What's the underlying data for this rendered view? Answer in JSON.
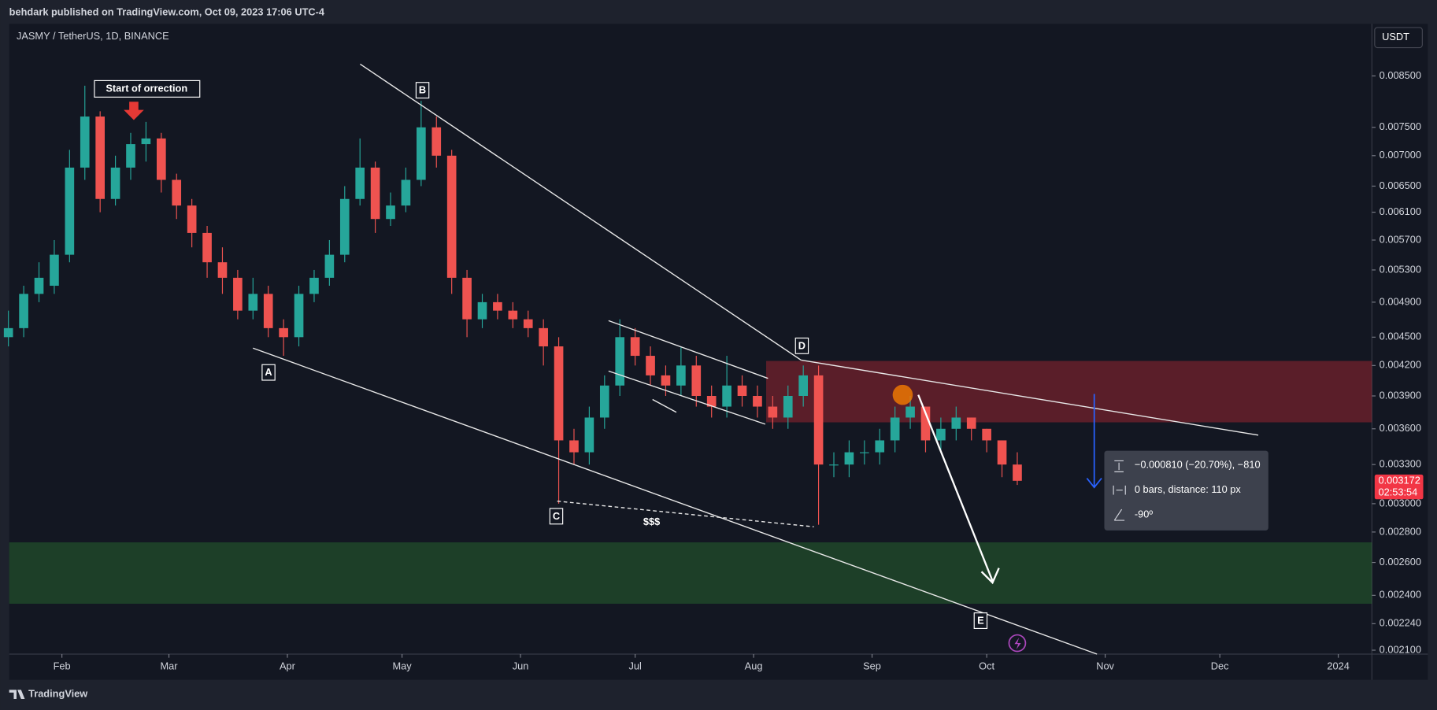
{
  "page": {
    "publisher": "behdark published on TradingView.com, Oct 09, 2023 17:06 UTC-4",
    "footer": "TradingView",
    "currency": "USDT",
    "countdown": "02:53:54",
    "annotations": {
      "start_label": "Start of orrection",
      "A": "A",
      "B": "B",
      "C": "C",
      "D": "D",
      "E": "E",
      "liquidity": "$$$"
    },
    "measure": {
      "price_range": "−0.000810 (−20.70%), −810",
      "bars": "0 bars, distance: 110 px",
      "angle": "-90º"
    }
  },
  "chart_data": {
    "type": "candlestick",
    "title": "JASMY / TetherUS, 1D, BINANCE",
    "log_scale": true,
    "grid": false,
    "up_color": "#26a69a",
    "down_color": "#ef5350",
    "xlim": [
      18.2,
      374.8
    ],
    "xticks": [
      {
        "value": 32,
        "label": "Feb"
      },
      {
        "value": 60,
        "label": "Mar"
      },
      {
        "value": 91,
        "label": "Apr"
      },
      {
        "value": 121,
        "label": "May"
      },
      {
        "value": 152,
        "label": "Jun"
      },
      {
        "value": 182,
        "label": "Jul"
      },
      {
        "value": 213,
        "label": "Aug"
      },
      {
        "value": 244,
        "label": "Sep"
      },
      {
        "value": 274,
        "label": "Oct"
      },
      {
        "value": 305,
        "label": "Nov"
      },
      {
        "value": 335,
        "label": "Dec"
      },
      {
        "value": 366,
        "label": "2024"
      }
    ],
    "ylim": [
      0.00208,
      0.00965
    ],
    "yticks": [
      {
        "value": 0.0085,
        "label": "0.008500"
      },
      {
        "value": 0.0075,
        "label": "0.007500"
      },
      {
        "value": 0.007,
        "label": "0.007000"
      },
      {
        "value": 0.0065,
        "label": "0.006500"
      },
      {
        "value": 0.0061,
        "label": "0.006100"
      },
      {
        "value": 0.0057,
        "label": "0.005700"
      },
      {
        "value": 0.0053,
        "label": "0.005300"
      },
      {
        "value": 0.0049,
        "label": "0.004900"
      },
      {
        "value": 0.0045,
        "label": "0.004500"
      },
      {
        "value": 0.0042,
        "label": "0.004200"
      },
      {
        "value": 0.0039,
        "label": "0.003900"
      },
      {
        "value": 0.0036,
        "label": "0.003600"
      },
      {
        "value": 0.0033,
        "label": "0.003300"
      },
      {
        "value": 0.003,
        "label": "0.003000"
      },
      {
        "value": 0.0028,
        "label": "0.002800"
      },
      {
        "value": 0.0026,
        "label": "0.002600"
      },
      {
        "value": 0.0024,
        "label": "0.002400"
      },
      {
        "value": 0.00224,
        "label": "0.002240"
      },
      {
        "value": 0.0021,
        "label": "0.002100"
      }
    ],
    "x": [
      18,
      22,
      26,
      30,
      34,
      38,
      42,
      46,
      50,
      54,
      58,
      62,
      66,
      70,
      74,
      78,
      82,
      86,
      90,
      94,
      98,
      102,
      106,
      110,
      114,
      118,
      122,
      126,
      130,
      134,
      138,
      142,
      146,
      150,
      154,
      158,
      162,
      166,
      170,
      174,
      178,
      182,
      186,
      190,
      194,
      198,
      202,
      206,
      210,
      214,
      218,
      222,
      226,
      230,
      234,
      238,
      242,
      246,
      250,
      254,
      258,
      262,
      266,
      270,
      274,
      278,
      282
    ],
    "candles": [
      [
        0.0045,
        0.0048,
        0.0044,
        0.0046
      ],
      [
        0.0046,
        0.0051,
        0.0045,
        0.005
      ],
      [
        0.005,
        0.0054,
        0.0049,
        0.0052
      ],
      [
        0.0051,
        0.0057,
        0.005,
        0.0055
      ],
      [
        0.0055,
        0.0071,
        0.0054,
        0.0068
      ],
      [
        0.0068,
        0.0083,
        0.0066,
        0.0077
      ],
      [
        0.0077,
        0.0078,
        0.0061,
        0.0063
      ],
      [
        0.0063,
        0.007,
        0.0062,
        0.0068
      ],
      [
        0.0068,
        0.0074,
        0.0066,
        0.0072
      ],
      [
        0.0072,
        0.0076,
        0.0069,
        0.0073
      ],
      [
        0.0073,
        0.0074,
        0.0064,
        0.0066
      ],
      [
        0.0066,
        0.0067,
        0.006,
        0.0062
      ],
      [
        0.0062,
        0.0063,
        0.0056,
        0.0058
      ],
      [
        0.0058,
        0.0059,
        0.0052,
        0.0054
      ],
      [
        0.0054,
        0.0056,
        0.005,
        0.0052
      ],
      [
        0.0052,
        0.0053,
        0.0047,
        0.0048
      ],
      [
        0.0048,
        0.0052,
        0.0047,
        0.005
      ],
      [
        0.005,
        0.0051,
        0.0045,
        0.0046
      ],
      [
        0.0046,
        0.0047,
        0.0043,
        0.0045
      ],
      [
        0.0045,
        0.0051,
        0.0044,
        0.005
      ],
      [
        0.005,
        0.0053,
        0.0049,
        0.0052
      ],
      [
        0.0052,
        0.0057,
        0.0051,
        0.0055
      ],
      [
        0.0055,
        0.0065,
        0.0054,
        0.0063
      ],
      [
        0.0063,
        0.0073,
        0.0062,
        0.0068
      ],
      [
        0.0068,
        0.0069,
        0.0058,
        0.006
      ],
      [
        0.006,
        0.0064,
        0.0059,
        0.0062
      ],
      [
        0.0062,
        0.0068,
        0.0061,
        0.0066
      ],
      [
        0.0066,
        0.008,
        0.0065,
        0.0075
      ],
      [
        0.0075,
        0.0077,
        0.0068,
        0.007
      ],
      [
        0.007,
        0.0071,
        0.005,
        0.0052
      ],
      [
        0.0052,
        0.0053,
        0.0045,
        0.0047
      ],
      [
        0.0047,
        0.005,
        0.0046,
        0.0049
      ],
      [
        0.0049,
        0.005,
        0.0047,
        0.0048
      ],
      [
        0.0048,
        0.0049,
        0.0046,
        0.0047
      ],
      [
        0.0047,
        0.0048,
        0.0045,
        0.0046
      ],
      [
        0.0046,
        0.0047,
        0.0042,
        0.0044
      ],
      [
        0.0044,
        0.0045,
        0.003,
        0.0035
      ],
      [
        0.0035,
        0.0036,
        0.0033,
        0.0034
      ],
      [
        0.0034,
        0.0038,
        0.0033,
        0.0037
      ],
      [
        0.0037,
        0.0041,
        0.0036,
        0.004
      ],
      [
        0.004,
        0.0047,
        0.0039,
        0.0045
      ],
      [
        0.0045,
        0.0046,
        0.0042,
        0.0043
      ],
      [
        0.0043,
        0.0044,
        0.004,
        0.0041
      ],
      [
        0.0041,
        0.0042,
        0.0039,
        0.004
      ],
      [
        0.004,
        0.0044,
        0.0039,
        0.0042
      ],
      [
        0.0042,
        0.0043,
        0.0038,
        0.0039
      ],
      [
        0.0039,
        0.004,
        0.0037,
        0.0038
      ],
      [
        0.0038,
        0.0043,
        0.0037,
        0.004
      ],
      [
        0.004,
        0.0041,
        0.0038,
        0.0039
      ],
      [
        0.0039,
        0.004,
        0.0037,
        0.0038
      ],
      [
        0.0038,
        0.0039,
        0.0036,
        0.0037
      ],
      [
        0.0037,
        0.004,
        0.0036,
        0.0039
      ],
      [
        0.0039,
        0.0042,
        0.0038,
        0.0041
      ],
      [
        0.0041,
        0.0042,
        0.00285,
        0.0033
      ],
      [
        0.0033,
        0.0034,
        0.0032,
        0.0033
      ],
      [
        0.0033,
        0.0035,
        0.0032,
        0.0034
      ],
      [
        0.0034,
        0.0035,
        0.0033,
        0.0034
      ],
      [
        0.0034,
        0.0036,
        0.0033,
        0.0035
      ],
      [
        0.0035,
        0.0038,
        0.0034,
        0.0037
      ],
      [
        0.0037,
        0.0039,
        0.0036,
        0.0038
      ],
      [
        0.0038,
        0.0038,
        0.0034,
        0.0035
      ],
      [
        0.0035,
        0.0037,
        0.0034,
        0.0036
      ],
      [
        0.0036,
        0.0038,
        0.0035,
        0.0037
      ],
      [
        0.0037,
        0.0037,
        0.0035,
        0.0036
      ],
      [
        0.0036,
        0.0036,
        0.0034,
        0.0035
      ],
      [
        0.0035,
        0.0035,
        0.0032,
        0.0033
      ],
      [
        0.0033,
        0.0034,
        0.00314,
        0.003172
      ]
    ]
  }
}
